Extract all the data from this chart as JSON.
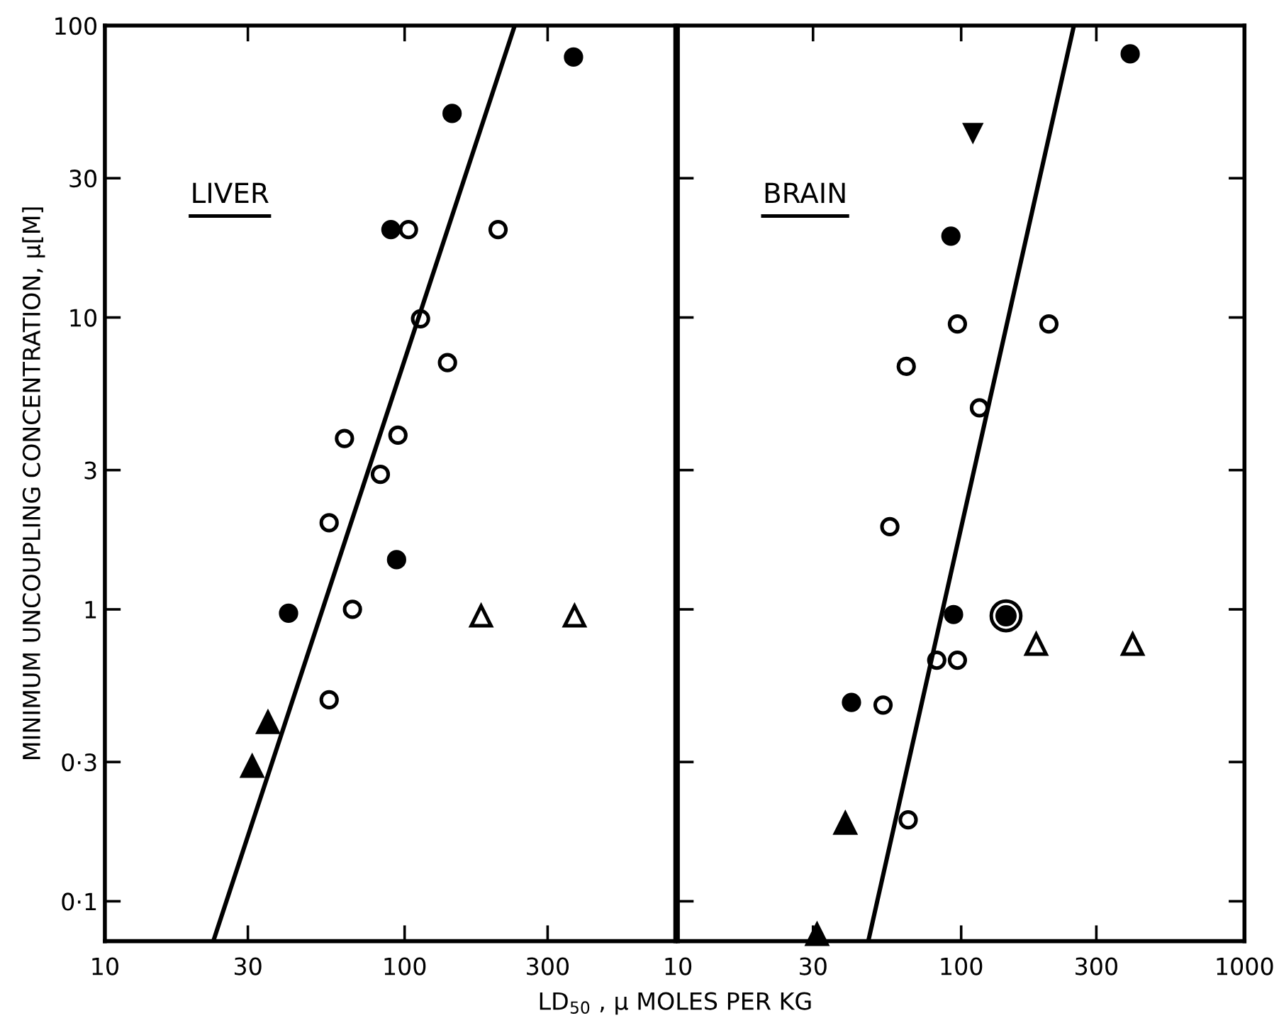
{
  "chart_data": [
    {
      "type": "scatter",
      "title": "LIVER",
      "xlabel": "LD$_{50}$ , μ MOLES PER KG",
      "ylabel": "MINIMUM UNCOUPLING CONCENTRATION, μ[M]",
      "log": "xy",
      "xlim": [
        10,
        800
      ],
      "ylim": [
        0.073,
        100
      ],
      "xticks": [
        10,
        30,
        100,
        300
      ],
      "yticks": [
        {
          "value": 0.1,
          "label": "0·1"
        },
        {
          "value": 0.3,
          "label": "0·3"
        },
        1,
        3,
        10,
        30,
        100
      ],
      "grid": false,
      "legend": false,
      "series": [
        {
          "marker": "circle",
          "color": "#000000",
          "x": [
            366,
            144,
            90,
            94,
            41
          ],
          "values": [
            78,
            50,
            20,
            1.48,
            0.97
          ]
        },
        {
          "marker": "circle_open",
          "color": "#000000",
          "x": [
            103,
            205,
            113,
            139,
            95,
            63,
            83,
            56,
            67,
            56
          ],
          "values": [
            20,
            20,
            9.9,
            7.0,
            3.95,
            3.85,
            2.9,
            1.98,
            1.0,
            0.49
          ]
        },
        {
          "marker": "triangle_open",
          "color": "#000000",
          "x": [
            180,
            369
          ],
          "values": [
            0.95,
            0.95
          ]
        },
        {
          "marker": "triangle",
          "color": "#000000",
          "x": [
            35,
            31
          ],
          "values": [
            0.41,
            0.29
          ]
        },
        {
          "type": "line",
          "marker": "none",
          "color": "#000000",
          "x": [
            23,
            233
          ],
          "values": [
            0.073,
            100
          ]
        }
      ]
    },
    {
      "type": "scatter",
      "title": "BRAIN",
      "log": "xy",
      "xlim": [
        10,
        1000
      ],
      "ylim": [
        0.073,
        100
      ],
      "tick_labels": "x",
      "xticks": [
        10,
        30,
        100,
        300,
        1000
      ],
      "yticks": [
        0.1,
        0.3,
        1,
        3,
        10,
        30,
        100
      ],
      "grid": false,
      "legend": false,
      "series": [
        {
          "marker": "circle",
          "color": "#000000",
          "x": [
            395,
            92,
            94,
            41
          ],
          "values": [
            80,
            19,
            0.96,
            0.48
          ]
        },
        {
          "marker": "triangle_down",
          "color": "#000000",
          "x": [
            110
          ],
          "values": [
            43
          ]
        },
        {
          "marker": "circle_open",
          "color": "#000000",
          "x": [
            97,
            204,
            64,
            116,
            56,
            82,
            97,
            53,
            65
          ],
          "values": [
            9.5,
            9.5,
            6.8,
            4.9,
            1.92,
            0.67,
            0.67,
            0.47,
            0.19
          ]
        },
        {
          "marker": "circle_ringed",
          "color": "#000000",
          "x": [
            144
          ],
          "values": [
            0.95
          ]
        },
        {
          "marker": "triangle_open",
          "color": "#000000",
          "x": [
            184,
            403
          ],
          "values": [
            0.76,
            0.76
          ]
        },
        {
          "marker": "triangle",
          "color": "#000000",
          "x": [
            39,
            31
          ],
          "values": [
            0.185,
            0.077
          ]
        },
        {
          "type": "line",
          "marker": "none",
          "color": "#000000",
          "x": [
            47,
            250
          ],
          "values": [
            0.073,
            100
          ]
        }
      ]
    }
  ]
}
